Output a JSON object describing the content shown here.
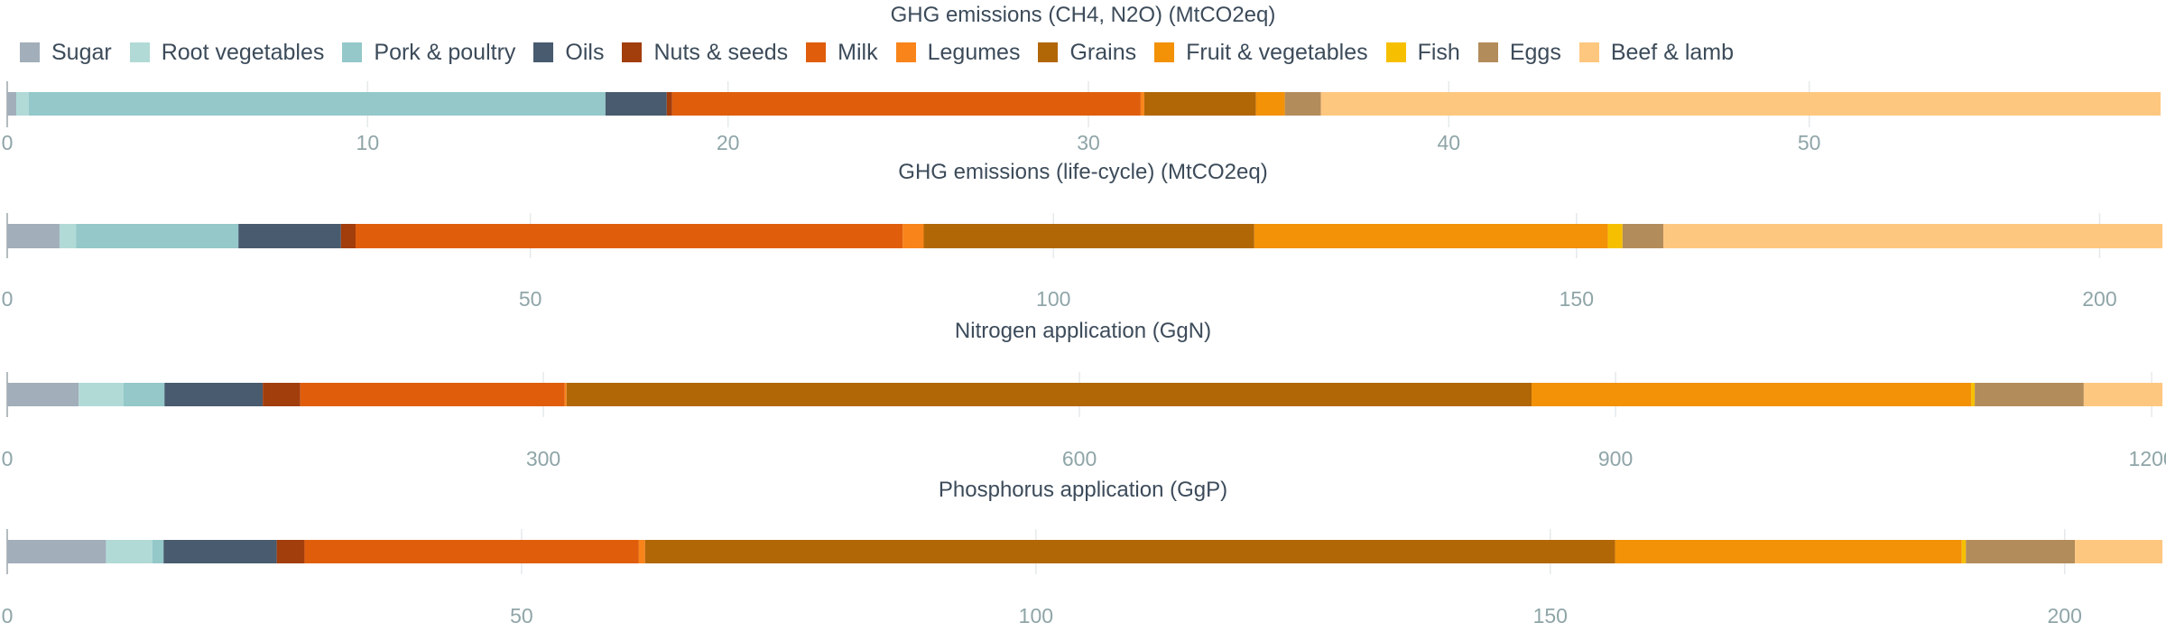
{
  "categories": [
    {
      "name": "Sugar",
      "color": "#a2aeb9"
    },
    {
      "name": "Root vegetables",
      "color": "#b1dad7"
    },
    {
      "name": "Pork & poultry",
      "color": "#94c8c9"
    },
    {
      "name": "Oils",
      "color": "#485b6f"
    },
    {
      "name": "Nuts & seeds",
      "color": "#a23d0c"
    },
    {
      "name": "Milk",
      "color": "#e05e0b"
    },
    {
      "name": "Legumes",
      "color": "#f9841a"
    },
    {
      "name": "Grains",
      "color": "#b16706"
    },
    {
      "name": "Fruit & vegetables",
      "color": "#f39107"
    },
    {
      "name": "Fish",
      "color": "#f6c000"
    },
    {
      "name": "Eggs",
      "color": "#b38c5b"
    },
    {
      "name": "Beef & lamb",
      "color": "#fec77f"
    }
  ],
  "chart_data": [
    {
      "type": "bar",
      "orientation": "horizontal-stacked",
      "title": "GHG emissions (CH4, N2O) (MtCO2eq)",
      "xlim": [
        0,
        59.8
      ],
      "ticks": [
        0,
        10,
        20,
        30,
        40,
        50
      ],
      "tick_labels": [
        "0",
        "10",
        "20",
        "30",
        "40",
        "50"
      ],
      "grid": true,
      "series": [
        {
          "name": "Sugar",
          "values": [
            0.25
          ]
        },
        {
          "name": "Root vegetables",
          "values": [
            0.35
          ]
        },
        {
          "name": "Pork & poultry",
          "values": [
            16.0
          ]
        },
        {
          "name": "Oils",
          "values": [
            1.7
          ]
        },
        {
          "name": "Nuts & seeds",
          "values": [
            0.15
          ]
        },
        {
          "name": "Milk",
          "values": [
            13.0
          ]
        },
        {
          "name": "Legumes",
          "values": [
            0.1
          ]
        },
        {
          "name": "Grains",
          "values": [
            3.1
          ]
        },
        {
          "name": "Fruit & vegetables",
          "values": [
            0.8
          ]
        },
        {
          "name": "Fish",
          "values": [
            0
          ]
        },
        {
          "name": "Eggs",
          "values": [
            1.0
          ]
        },
        {
          "name": "Beef & lamb",
          "values": [
            23.3
          ]
        }
      ]
    },
    {
      "type": "bar",
      "orientation": "horizontal-stacked",
      "title": "GHG emissions (life-cycle) (MtCO2eq)",
      "xlim": [
        0,
        206
      ],
      "ticks": [
        0,
        50,
        100,
        150,
        200
      ],
      "tick_labels": [
        "0",
        "50",
        "100",
        "150",
        "200"
      ],
      "grid": true,
      "series": [
        {
          "name": "Sugar",
          "values": [
            5.0
          ]
        },
        {
          "name": "Root vegetables",
          "values": [
            1.6
          ]
        },
        {
          "name": "Pork & poultry",
          "values": [
            15.5
          ]
        },
        {
          "name": "Oils",
          "values": [
            9.8
          ]
        },
        {
          "name": "Nuts & seeds",
          "values": [
            1.4
          ]
        },
        {
          "name": "Milk",
          "values": [
            52.3
          ]
        },
        {
          "name": "Legumes",
          "values": [
            2.0
          ]
        },
        {
          "name": "Grains",
          "values": [
            31.6
          ]
        },
        {
          "name": "Fruit & vegetables",
          "values": [
            33.8
          ]
        },
        {
          "name": "Fish",
          "values": [
            1.4
          ]
        },
        {
          "name": "Eggs",
          "values": [
            3.9
          ]
        },
        {
          "name": "Beef & lamb",
          "values": [
            47.7
          ]
        }
      ]
    },
    {
      "type": "bar",
      "orientation": "horizontal-stacked",
      "title": "Nitrogen application (GgN)",
      "xlim": [
        0,
        1206
      ],
      "ticks": [
        0,
        300,
        600,
        900,
        1200
      ],
      "tick_labels": [
        "0",
        "300",
        "600",
        "900",
        "1200"
      ],
      "grid": true,
      "series": [
        {
          "name": "Sugar",
          "values": [
            40
          ]
        },
        {
          "name": "Root vegetables",
          "values": [
            25
          ]
        },
        {
          "name": "Pork & poultry",
          "values": [
            23
          ]
        },
        {
          "name": "Oils",
          "values": [
            55
          ]
        },
        {
          "name": "Nuts & seeds",
          "values": [
            21
          ]
        },
        {
          "name": "Milk",
          "values": [
            148
          ]
        },
        {
          "name": "Legumes",
          "values": [
            1
          ]
        },
        {
          "name": "Grains",
          "values": [
            540
          ]
        },
        {
          "name": "Fruit & vegetables",
          "values": [
            246
          ]
        },
        {
          "name": "Fish",
          "values": [
            2
          ]
        },
        {
          "name": "Eggs",
          "values": [
            61
          ]
        },
        {
          "name": "Beef & lamb",
          "values": [
            44
          ]
        }
      ]
    },
    {
      "type": "bar",
      "orientation": "horizontal-stacked",
      "title": "Phosphorus application (GgP)",
      "xlim": [
        0,
        209.5
      ],
      "ticks": [
        0,
        50,
        100,
        150,
        200
      ],
      "tick_labels": [
        "0",
        "50",
        "100",
        "150",
        "200"
      ],
      "grid": true,
      "series": [
        {
          "name": "Sugar",
          "values": [
            9.6
          ]
        },
        {
          "name": "Root vegetables",
          "values": [
            4.5
          ]
        },
        {
          "name": "Pork & poultry",
          "values": [
            1.1
          ]
        },
        {
          "name": "Oils",
          "values": [
            11.0
          ]
        },
        {
          "name": "Nuts & seeds",
          "values": [
            2.7
          ]
        },
        {
          "name": "Milk",
          "values": [
            32.5
          ]
        },
        {
          "name": "Legumes",
          "values": [
            0.6
          ]
        },
        {
          "name": "Grains",
          "values": [
            94.3
          ]
        },
        {
          "name": "Fruit & vegetables",
          "values": [
            33.7
          ]
        },
        {
          "name": "Fish",
          "values": [
            0.4
          ]
        },
        {
          "name": "Eggs",
          "values": [
            10.6
          ]
        },
        {
          "name": "Beef & lamb",
          "values": [
            8.5
          ]
        }
      ]
    }
  ]
}
